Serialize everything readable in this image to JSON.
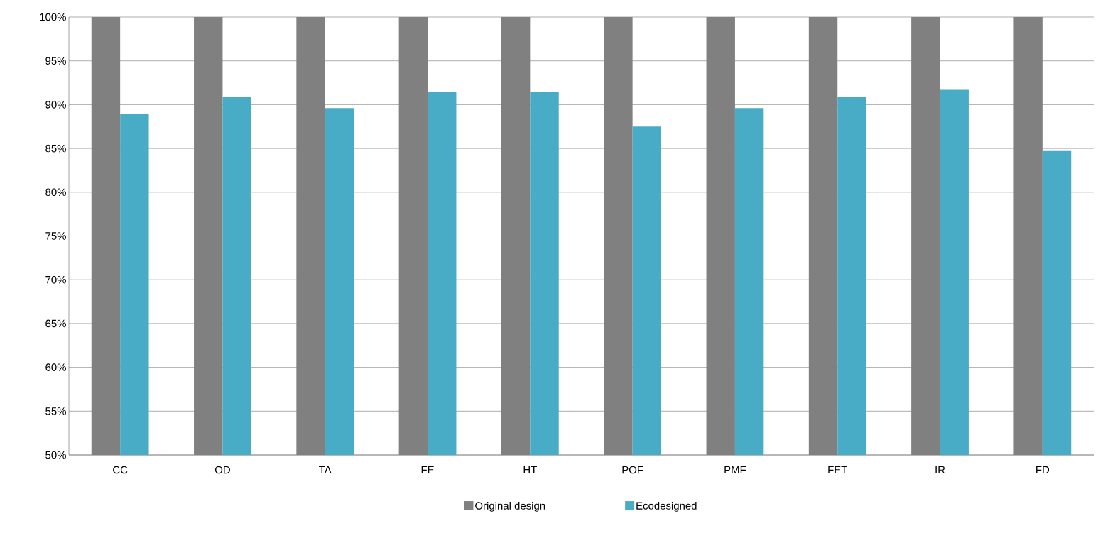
{
  "chart_data": {
    "type": "bar",
    "categories": [
      "CC",
      "OD",
      "TA",
      "FE",
      "HT",
      "POF",
      "PMF",
      "FET",
      "IR",
      "FD"
    ],
    "series": [
      {
        "name": "Original design",
        "color": "#7f807f",
        "values": [
          100,
          100,
          100,
          100,
          100,
          100,
          100,
          100,
          100,
          100
        ]
      },
      {
        "name": "Ecodesigned",
        "color": "#49acc6",
        "values": [
          88.9,
          90.9,
          89.6,
          91.5,
          91.5,
          87.5,
          89.6,
          90.9,
          91.7,
          84.7
        ]
      }
    ],
    "ylim": [
      50,
      100
    ],
    "yticks": [
      {
        "value": 50,
        "label": "50%"
      },
      {
        "value": 55,
        "label": "55%"
      },
      {
        "value": 60,
        "label": "60%"
      },
      {
        "value": 65,
        "label": "65%"
      },
      {
        "value": 70,
        "label": "70%"
      },
      {
        "value": 75,
        "label": "75%"
      },
      {
        "value": 80,
        "label": "80%"
      },
      {
        "value": 85,
        "label": "85%"
      },
      {
        "value": 90,
        "label": "90%"
      },
      {
        "value": 95,
        "label": "95%"
      },
      {
        "value": 100,
        "label": "100%"
      }
    ],
    "grid": "y",
    "legend": "bottom"
  }
}
